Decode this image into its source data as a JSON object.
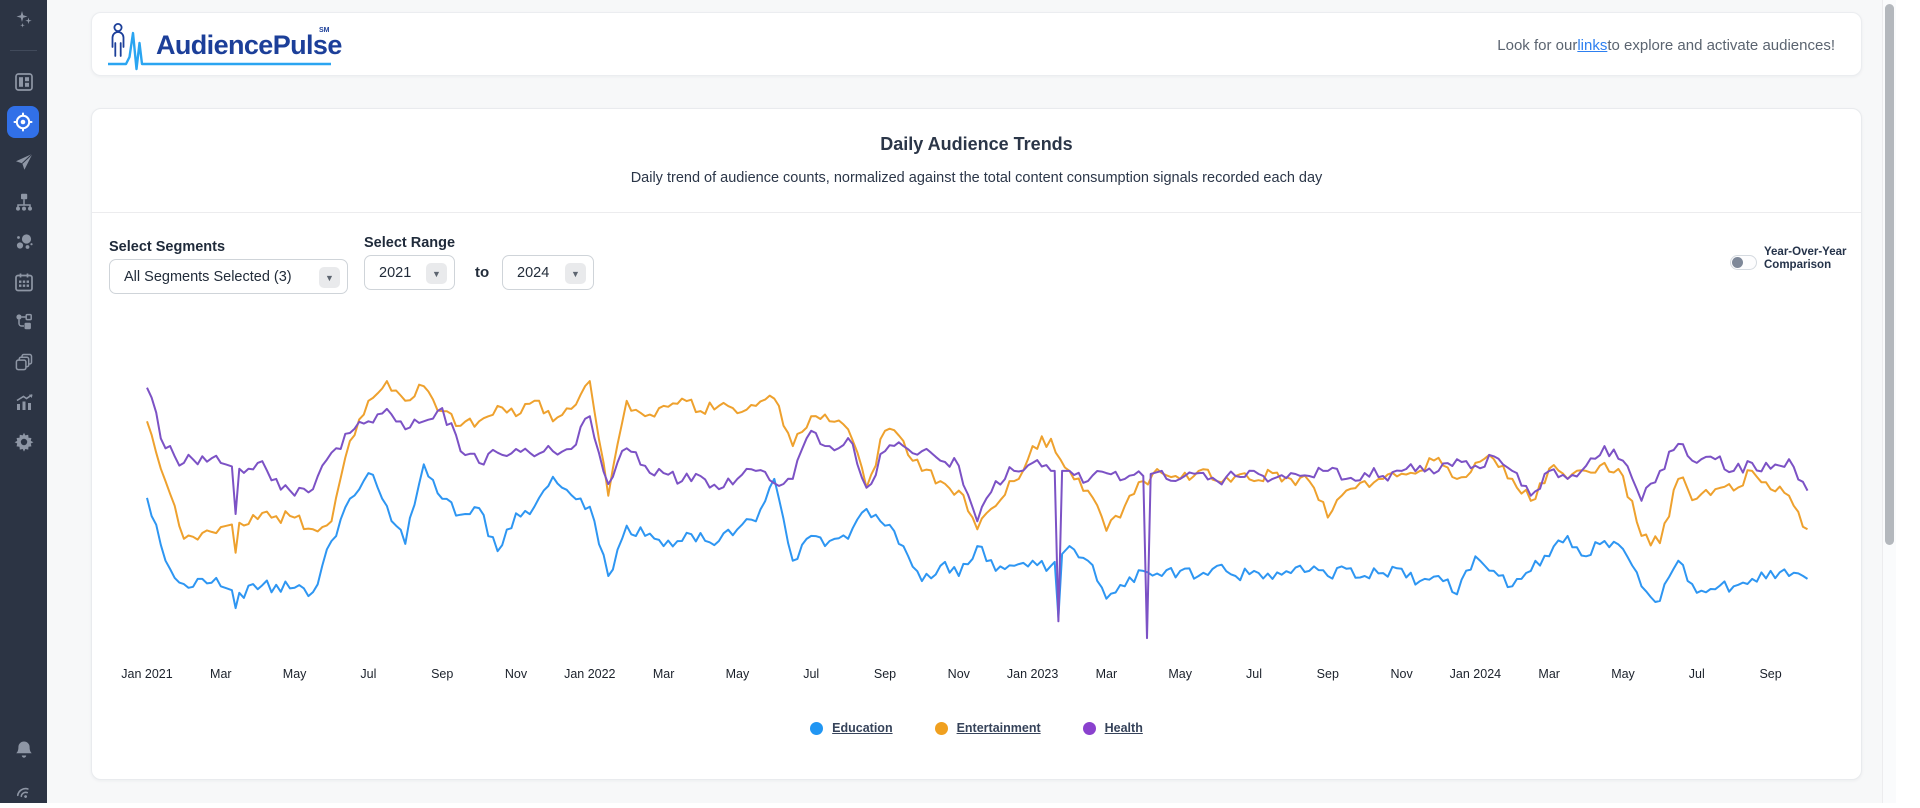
{
  "header": {
    "logo_text": "AudiencePulse",
    "logo_mark": "SM",
    "tagline_prefix": "Look for our ",
    "tagline_link": "links",
    "tagline_suffix": " to explore and activate audiences!"
  },
  "sidebar": {
    "active_item": "audience-target",
    "icons": [
      "sparkles",
      "layout",
      "audience-target",
      "send",
      "sitemap",
      "bubbles",
      "calendar",
      "flow",
      "layers",
      "chart",
      "settings",
      "notifications",
      "signal"
    ]
  },
  "card": {
    "title": "Daily Audience Trends",
    "subtitle": "Daily trend of audience counts, normalized against the total content consumption signals recorded each day"
  },
  "controls": {
    "segments_label": "Select Segments",
    "segments_value": "All Segments Selected (3)",
    "range_label": "Select Range",
    "range_from": "2021",
    "to_label": "to",
    "range_to": "2024",
    "yoy_line1": "Year-Over-Year",
    "yoy_line2": "Comparison",
    "yoy_state": "off"
  },
  "chart_data": {
    "type": "line",
    "title": "Daily Audience Trends",
    "xlabel": "",
    "ylabel": "",
    "unit": "normalized share (%)",
    "grid": false,
    "legend_position": "bottom",
    "x_start": "2021-01-01",
    "x_step_months": 0.5,
    "x_end": "2024-10-01",
    "ylim": [
      5,
      42
    ],
    "noise": 0.9,
    "tick_labels": [
      "Jan 2021",
      "Mar",
      "May",
      "Jul",
      "Sep",
      "Nov",
      "Jan 2022",
      "Mar",
      "May",
      "Jul",
      "Sep",
      "Nov",
      "Jan 2023",
      "Mar",
      "May",
      "Jul",
      "Sep",
      "Nov",
      "Jan 2024",
      "Mar",
      "May",
      "Jul",
      "Sep"
    ],
    "series": [
      {
        "name": "Education",
        "color": "#2e96f2",
        "dot": "#2196f3",
        "values": [
          24.6,
          16.0,
          12.8,
          13.5,
          12.5,
          11.6,
          12.1,
          12.7,
          12.3,
          11.7,
          18.7,
          24.5,
          28.0,
          23.5,
          18.3,
          29.2,
          24.5,
          22.3,
          23.2,
          17.3,
          22.5,
          23.4,
          27.5,
          25.0,
          23.4,
          13.9,
          20.8,
          19.4,
          18.0,
          18.7,
          19.8,
          18.7,
          20.3,
          21.4,
          27.2,
          16.0,
          19.4,
          18.7,
          19.0,
          23.1,
          20.8,
          18.0,
          13.2,
          15.3,
          13.9,
          18.0,
          14.6,
          15.3,
          16.0,
          15.3,
          18.0,
          16.0,
          10.8,
          12.5,
          14.6,
          13.9,
          14.6,
          13.9,
          15.3,
          13.9,
          14.6,
          13.5,
          14.3,
          14.6,
          13.9,
          14.9,
          13.9,
          14.3,
          14.9,
          13.2,
          13.9,
          11.4,
          16.6,
          14.6,
          12.5,
          14.6,
          16.6,
          19.4,
          16.6,
          18.7,
          17.6,
          12.5,
          10.5,
          16.0,
          11.6,
          12.1,
          12.5,
          13.5,
          14.6,
          13.9,
          13.5
        ]
      },
      {
        "name": "Entertainment",
        "color": "#eea12e",
        "dot": "#f0a01f",
        "values": [
          35.1,
          26.9,
          19.0,
          19.8,
          20.6,
          21.2,
          21.7,
          22.1,
          21.9,
          20.3,
          21.4,
          32.4,
          37.9,
          40.6,
          37.9,
          39.9,
          36.5,
          34.5,
          35.1,
          37.2,
          35.8,
          37.9,
          35.1,
          36.8,
          40.6,
          24.9,
          37.9,
          35.8,
          37.2,
          38.2,
          36.5,
          37.2,
          36.2,
          37.2,
          38.2,
          31.7,
          35.8,
          35.1,
          34.0,
          26.0,
          33.8,
          32.4,
          28.3,
          26.9,
          25.6,
          20.3,
          23.5,
          26.9,
          31.7,
          32.7,
          28.3,
          25.6,
          20.1,
          23.5,
          26.9,
          28.0,
          27.2,
          28.3,
          26.9,
          27.6,
          26.9,
          28.0,
          27.2,
          26.9,
          21.9,
          25.6,
          26.9,
          27.2,
          27.9,
          28.3,
          30.1,
          27.2,
          29.4,
          29.9,
          27.2,
          24.2,
          28.6,
          27.2,
          28.3,
          29.4,
          27.6,
          19.4,
          18.4,
          27.2,
          24.5,
          25.8,
          25.6,
          28.3,
          25.8,
          24.9,
          20.3
        ]
      },
      {
        "name": "Health",
        "color": "#7c52c5",
        "dot": "#8a41ce",
        "values": [
          39.7,
          31.4,
          29.4,
          30.3,
          29.4,
          28.6,
          29.4,
          27.2,
          24.9,
          25.8,
          30.8,
          33.5,
          35.1,
          36.8,
          34.0,
          35.1,
          36.9,
          31.0,
          29.4,
          30.8,
          31.3,
          30.3,
          31.0,
          31.3,
          35.8,
          26.5,
          31.4,
          29.0,
          28.0,
          26.9,
          27.6,
          25.8,
          27.2,
          28.3,
          26.6,
          27.2,
          33.8,
          31.7,
          32.8,
          26.0,
          31.0,
          31.7,
          31.0,
          29.7,
          29.0,
          21.4,
          26.9,
          28.3,
          29.4,
          28.3,
          28.3,
          26.9,
          28.0,
          27.2,
          27.6,
          28.3,
          27.2,
          28.0,
          26.9,
          27.6,
          28.3,
          27.2,
          28.0,
          27.6,
          28.3,
          27.2,
          28.0,
          27.6,
          28.3,
          29.0,
          28.3,
          29.9,
          29.0,
          30.3,
          28.3,
          24.9,
          28.3,
          27.2,
          29.0,
          31.7,
          29.7,
          24.2,
          28.3,
          32.0,
          29.4,
          29.9,
          28.3,
          29.4,
          28.6,
          29.9,
          25.6
        ]
      }
    ],
    "anomalies": [
      {
        "t": 2.4,
        "series": "Education",
        "v": 9.5
      },
      {
        "t": 2.4,
        "series": "Entertainment",
        "v": 17.1
      },
      {
        "t": 2.4,
        "series": "Health",
        "v": 22.4
      },
      {
        "t": 24.7,
        "series": "Education",
        "v": 8.2
      },
      {
        "t": 24.7,
        "series": "Health",
        "v": 7.7
      },
      {
        "t": 27.1,
        "series": "Health",
        "v": 5.4
      }
    ]
  }
}
